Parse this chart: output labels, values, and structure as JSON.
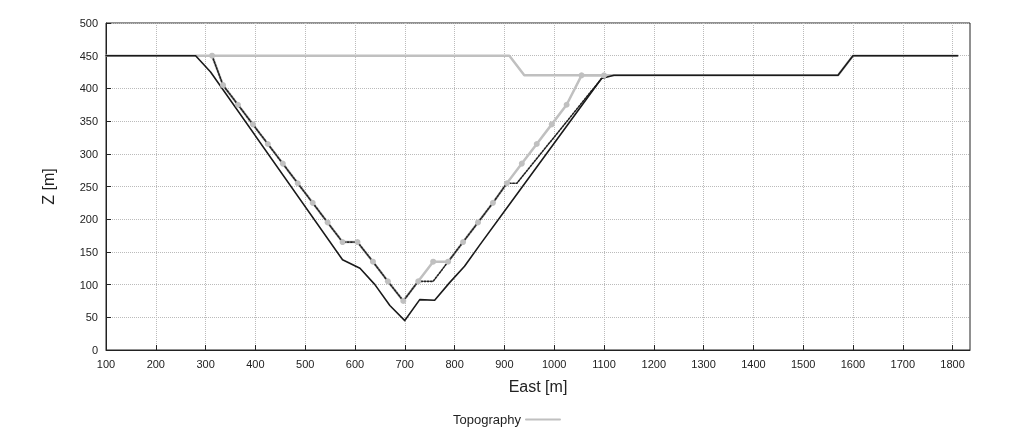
{
  "chart_data": {
    "type": "line",
    "xlabel": "East [m]",
    "ylabel": "Z [m]",
    "xlim": [
      100,
      1835
    ],
    "xticks": [
      100,
      200,
      300,
      400,
      500,
      600,
      700,
      800,
      900,
      1000,
      1100,
      1200,
      1300,
      1400,
      1500,
      1600,
      1700,
      1800
    ],
    "ylim": [
      0,
      500
    ],
    "yticks": [
      0,
      50,
      100,
      150,
      200,
      250,
      300,
      350,
      400,
      450,
      500
    ],
    "grid": true,
    "legend": "bottom",
    "series": [
      {
        "name": "Topography",
        "color": "#c0c0c0",
        "line_style": "solid",
        "marker": "none",
        "x": [
          100,
          910,
          940,
          1570,
          1600,
          1810
        ],
        "values": [
          450,
          450,
          420,
          420,
          450,
          450
        ]
      },
      {
        "color": "#c0c0c0",
        "line_style": "solid",
        "marker": "circle",
        "x": [
          313,
          335,
          365,
          395,
          425,
          455,
          485,
          515,
          545,
          575,
          605,
          636,
          666,
          697,
          727,
          757,
          787,
          817,
          847,
          877,
          905,
          935,
          965,
          995,
          1025,
          1055,
          1100
        ],
        "values": [
          450,
          405,
          375,
          345,
          315,
          285,
          255,
          225,
          195,
          165,
          165,
          135,
          105,
          75,
          105,
          135,
          135,
          165,
          195,
          225,
          255,
          285,
          315,
          345,
          375,
          420,
          420
        ]
      },
      {
        "color": "#222222",
        "line_style": "dotted",
        "marker": "none",
        "x": [
          313,
          335,
          365,
          395,
          425,
          455,
          485,
          515,
          545,
          575,
          605,
          636,
          666,
          697,
          727,
          757,
          787,
          817,
          847,
          877,
          905,
          925,
          1095
        ],
        "values": [
          450,
          405,
          375,
          345,
          315,
          285,
          255,
          225,
          195,
          165,
          165,
          135,
          105,
          75,
          105,
          105,
          135,
          165,
          195,
          225,
          255,
          255,
          415
        ]
      },
      {
        "color": "#1a1a1a",
        "line_style": "solid",
        "marker": "none",
        "x": [
          100,
          280,
          310,
          575,
          610,
          640,
          670,
          700,
          730,
          760,
          790,
          820,
          850,
          1095,
          1120,
          1570,
          1600,
          1810
        ],
        "values": [
          450,
          450,
          425,
          138,
          125,
          100,
          68,
          45,
          77,
          76,
          103,
          128,
          160,
          415,
          420,
          420,
          450,
          450
        ]
      }
    ]
  }
}
